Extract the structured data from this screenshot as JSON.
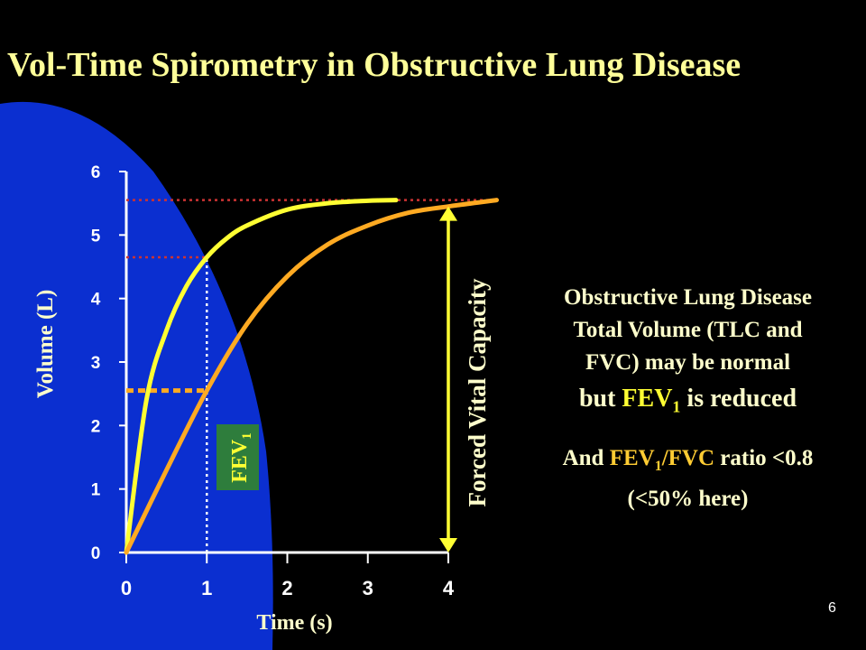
{
  "slide": {
    "title": "Vol-Time Spirometry in Obstructive Lung Disease",
    "notes": {
      "line1": "Obstructive Lung Disease",
      "line2": "Total Volume (TLC and",
      "line3": "FVC) may be normal",
      "reduced_prefix": "but ",
      "reduced_term": "FEV",
      "reduced_sub": "1",
      "reduced_suffix": " is reduced",
      "ratio_prefix": "And ",
      "ratio_term": "FEV",
      "ratio_sub": "1",
      "ratio_term2": "/FVC",
      "ratio_suffix": " ratio <0.8",
      "ratio_line2": "(<50% here)"
    },
    "slide_number": "6"
  },
  "chart_data": {
    "type": "line",
    "title": "",
    "xlabel": "Time (s)",
    "ylabel": "Volume (L)",
    "xlim": [
      0,
      4
    ],
    "ylim": [
      0,
      6
    ],
    "x_ticks": [
      "0",
      "1",
      "2",
      "3",
      "4"
    ],
    "y_ticks": [
      "0",
      "1",
      "2",
      "3",
      "4",
      "5",
      "6"
    ],
    "grid": false,
    "series": [
      {
        "color": "#ffff33",
        "x": [
          0,
          0.25,
          0.5,
          0.75,
          1,
          1.25,
          1.5,
          2,
          2.5,
          3,
          3.35
        ],
        "y": [
          0,
          2.4,
          3.5,
          4.2,
          4.65,
          4.95,
          5.15,
          5.4,
          5.5,
          5.54,
          5.55
        ]
      },
      {
        "color": "#ffaa22",
        "x": [
          0,
          0.5,
          1,
          1.5,
          2,
          2.5,
          3,
          3.5,
          4,
          4.6
        ],
        "y": [
          0,
          1.3,
          2.55,
          3.6,
          4.35,
          4.85,
          5.15,
          5.35,
          5.45,
          5.55
        ]
      }
    ],
    "reference_lines": [
      {
        "kind": "horizontal",
        "y": 5.55,
        "x_from": 0,
        "x_to": 4.6,
        "color": "#cc3333",
        "style": "dotted"
      },
      {
        "kind": "horizontal",
        "y": 4.65,
        "x_from": 0,
        "x_to": 1,
        "color": "#cc3333",
        "style": "dotted"
      },
      {
        "kind": "horizontal",
        "y": 2.55,
        "x_from": 0,
        "x_to": 1,
        "color": "#ffaa22",
        "style": "dashed"
      },
      {
        "kind": "vertical",
        "x": 1,
        "y_from": 0,
        "y_to": 4.65,
        "color": "#ffffff",
        "style": "dotted"
      }
    ],
    "annotations": {
      "fev1_label": "FEV",
      "fev1_sub": "1",
      "fvc_label": "Forced  Vital Capacity",
      "fvc_arrow": {
        "x": 4,
        "y_from": 0,
        "y_to": 5.45,
        "color": "#ffff33"
      }
    }
  }
}
